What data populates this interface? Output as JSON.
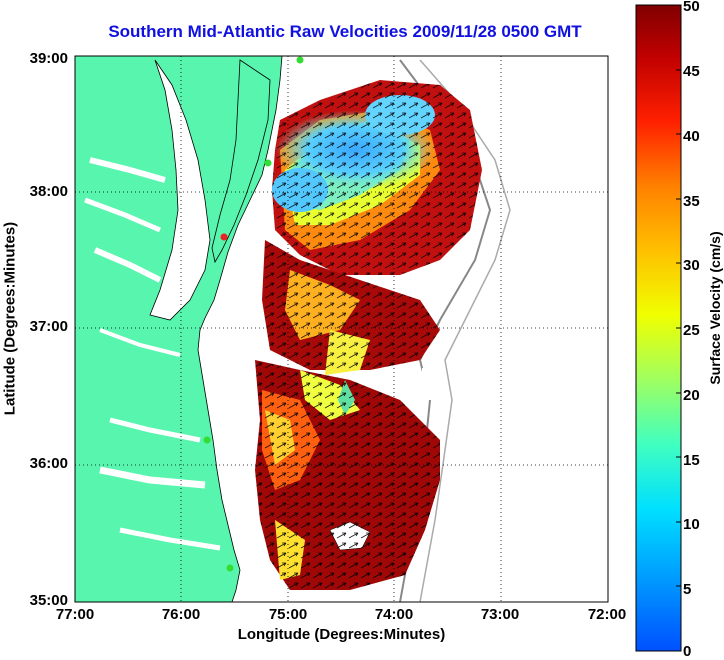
{
  "title": "Southern Mid-Atlantic Raw Velocities 2009/11/28 0500 GMT",
  "axes": {
    "xlabel": "Longitude (Degrees:Minutes)",
    "ylabel": "Latitude (Degrees:Minutes)",
    "x_ticks": [
      "77:00",
      "76:00",
      "75:00",
      "74:00",
      "73:00",
      "72:00"
    ],
    "y_ticks": [
      "39:00",
      "38:00",
      "37:00",
      "36:00",
      "35:00"
    ]
  },
  "colorbar": {
    "label": "Surface Velocity (cm/s)",
    "ticks": [
      "50",
      "45",
      "40",
      "35",
      "30",
      "25",
      "20",
      "15",
      "10",
      "5",
      "0"
    ],
    "range": [
      0,
      50
    ]
  },
  "colors": {
    "land": "#57f5ad",
    "water": "#ffffff",
    "title": "#1010e0",
    "station": "#33dd33",
    "station_alt": "#ee2222"
  },
  "map_extent": {
    "lon": [
      -77,
      -72
    ],
    "lat": [
      35,
      39
    ]
  }
}
